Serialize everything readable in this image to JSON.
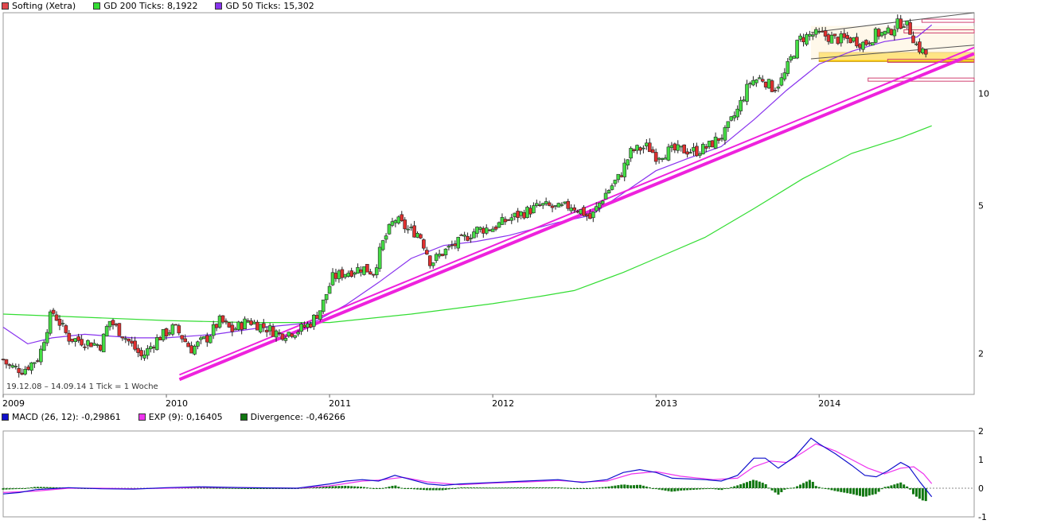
{
  "legend_top": [
    {
      "label": "Softing (Xetra)",
      "color": "#e0474c"
    },
    {
      "label": "GD 200 Ticks: 8,1922",
      "color": "#33dd33"
    },
    {
      "label": "GD 50 Ticks: 15,302",
      "color": "#8833ee"
    }
  ],
  "legend_bottom": [
    {
      "label": "MACD (26, 12): -0,29861",
      "color": "#1010cc"
    },
    {
      "label": "EXP (9): 0,16405",
      "color": "#ee33ee"
    },
    {
      "label": "Divergence: -0,46266",
      "color": "#117711"
    }
  ],
  "info_text": "19.12.08 – 14.09.14   1 Tick = 1 Woche",
  "colors": {
    "up": "#44dd44",
    "down": "#e03030",
    "gd200": "#33dd33",
    "gd50": "#8833ee",
    "trend": "#ee22dd",
    "macd": "#1010cc",
    "exp": "#ee33ee",
    "divergence": "#117711",
    "resistance": "#d04070",
    "zone": "#ffd000"
  },
  "chart_data": [
    {
      "type": "candlestick",
      "name": "price",
      "scale": "log",
      "ylim": [
        1.55,
        16.5
      ],
      "y_ticks": [
        {
          "value": 2,
          "label": "2"
        },
        {
          "value": 5,
          "label": "5"
        },
        {
          "value": 10,
          "label": "10"
        }
      ],
      "x_range": [
        2009.0,
        2014.95
      ],
      "x_ticks": [
        {
          "value": 2009.0,
          "label": "2009"
        },
        {
          "value": 2010.0,
          "label": "2010"
        },
        {
          "value": 2011.0,
          "label": "2011"
        },
        {
          "value": 2012.0,
          "label": "2012"
        },
        {
          "value": 2013.0,
          "label": "2013"
        },
        {
          "value": 2014.0,
          "label": "2014"
        }
      ],
      "price_path": [
        [
          2008.97,
          2.0
        ],
        [
          2009.03,
          1.85
        ],
        [
          2009.12,
          1.8
        ],
        [
          2009.22,
          1.95
        ],
        [
          2009.3,
          2.6
        ],
        [
          2009.4,
          2.2
        ],
        [
          2009.5,
          2.15
        ],
        [
          2009.6,
          2.1
        ],
        [
          2009.65,
          2.45
        ],
        [
          2009.75,
          2.2
        ],
        [
          2009.85,
          1.95
        ],
        [
          2009.95,
          2.2
        ],
        [
          2010.05,
          2.35
        ],
        [
          2010.15,
          2.05
        ],
        [
          2010.25,
          2.2
        ],
        [
          2010.33,
          2.45
        ],
        [
          2010.4,
          2.3
        ],
        [
          2010.5,
          2.45
        ],
        [
          2010.6,
          2.35
        ],
        [
          2010.7,
          2.25
        ],
        [
          2010.8,
          2.3
        ],
        [
          2010.88,
          2.4
        ],
        [
          2010.95,
          2.65
        ],
        [
          2011.02,
          3.2
        ],
        [
          2011.1,
          3.3
        ],
        [
          2011.2,
          3.4
        ],
        [
          2011.27,
          3.3
        ],
        [
          2011.33,
          4.0
        ],
        [
          2011.4,
          4.6
        ],
        [
          2011.48,
          4.3
        ],
        [
          2011.55,
          4.2
        ],
        [
          2011.62,
          3.5
        ],
        [
          2011.7,
          3.75
        ],
        [
          2011.8,
          4.0
        ],
        [
          2011.9,
          4.3
        ],
        [
          2012.0,
          4.35
        ],
        [
          2012.1,
          4.6
        ],
        [
          2012.2,
          4.8
        ],
        [
          2012.3,
          5.0
        ],
        [
          2012.4,
          4.9
        ],
        [
          2012.48,
          5.0
        ],
        [
          2012.55,
          4.8
        ],
        [
          2012.6,
          4.6
        ],
        [
          2012.68,
          5.3
        ],
        [
          2012.78,
          6.0
        ],
        [
          2012.85,
          7.0
        ],
        [
          2012.95,
          7.2
        ],
        [
          2013.0,
          6.8
        ],
        [
          2013.08,
          7.0
        ],
        [
          2013.15,
          7.05
        ],
        [
          2013.25,
          7.0
        ],
        [
          2013.32,
          7.2
        ],
        [
          2013.42,
          7.8
        ],
        [
          2013.5,
          9.0
        ],
        [
          2013.58,
          10.8
        ],
        [
          2013.65,
          11.0
        ],
        [
          2013.72,
          10.3
        ],
        [
          2013.78,
          11.0
        ],
        [
          2013.83,
          12.5
        ],
        [
          2013.88,
          14.0
        ],
        [
          2013.95,
          14.4
        ],
        [
          2014.02,
          14.4
        ],
        [
          2014.1,
          14.0
        ],
        [
          2014.2,
          14.0
        ],
        [
          2014.28,
          13.6
        ],
        [
          2014.35,
          14.5
        ],
        [
          2014.42,
          14.5
        ],
        [
          2014.47,
          15.3
        ],
        [
          2014.52,
          15.6
        ],
        [
          2014.56,
          14.7
        ],
        [
          2014.6,
          13.4
        ],
        [
          2014.66,
          12.7
        ]
      ],
      "gd200": [
        [
          2009.0,
          2.55
        ],
        [
          2009.5,
          2.5
        ],
        [
          2010.0,
          2.45
        ],
        [
          2010.5,
          2.42
        ],
        [
          2011.0,
          2.42
        ],
        [
          2011.5,
          2.55
        ],
        [
          2012.0,
          2.72
        ],
        [
          2012.3,
          2.85
        ],
        [
          2012.5,
          2.95
        ],
        [
          2012.8,
          3.3
        ],
        [
          2013.0,
          3.6
        ],
        [
          2013.3,
          4.1
        ],
        [
          2013.6,
          4.9
        ],
        [
          2013.9,
          5.9
        ],
        [
          2014.2,
          6.9
        ],
        [
          2014.5,
          7.6
        ],
        [
          2014.69,
          8.19
        ]
      ],
      "gd50": [
        [
          2009.0,
          2.35
        ],
        [
          2009.15,
          2.12
        ],
        [
          2009.3,
          2.2
        ],
        [
          2009.5,
          2.25
        ],
        [
          2009.8,
          2.2
        ],
        [
          2010.0,
          2.2
        ],
        [
          2010.3,
          2.25
        ],
        [
          2010.6,
          2.35
        ],
        [
          2010.9,
          2.42
        ],
        [
          2011.1,
          2.7
        ],
        [
          2011.3,
          3.1
        ],
        [
          2011.5,
          3.6
        ],
        [
          2011.7,
          3.9
        ],
        [
          2011.9,
          4.0
        ],
        [
          2012.1,
          4.15
        ],
        [
          2012.4,
          4.5
        ],
        [
          2012.6,
          4.7
        ],
        [
          2012.8,
          5.4
        ],
        [
          2013.0,
          6.2
        ],
        [
          2013.2,
          6.7
        ],
        [
          2013.4,
          7.2
        ],
        [
          2013.6,
          8.5
        ],
        [
          2013.8,
          10.2
        ],
        [
          2014.0,
          12.0
        ],
        [
          2014.2,
          13.0
        ],
        [
          2014.4,
          13.8
        ],
        [
          2014.6,
          14.2
        ],
        [
          2014.69,
          15.3
        ]
      ],
      "trendlines": [
        {
          "from": [
            2010.08,
            1.7
          ],
          "to": [
            2014.95,
            12.8
          ],
          "width": 4,
          "color": "#ee22dd"
        },
        {
          "from": [
            2010.08,
            1.75
          ],
          "to": [
            2014.95,
            13.3
          ],
          "width": 2,
          "color": "#ee22dd"
        },
        {
          "from": [
            2013.95,
            12.4
          ],
          "to": [
            2014.95,
            13.5
          ],
          "width": 1,
          "color": "#555555"
        },
        {
          "from": [
            2013.95,
            14.6
          ],
          "to": [
            2014.95,
            16.5
          ],
          "width": 1,
          "color": "#555555"
        }
      ],
      "resistance_lines": [
        {
          "x1": 2014.63,
          "x2": 2014.95,
          "y": 15.7
        },
        {
          "x1": 2014.52,
          "x2": 2014.95,
          "y": 14.7
        },
        {
          "x1": 2014.42,
          "x2": 2014.95,
          "y": 12.25
        },
        {
          "x1": 2014.3,
          "x2": 2014.95,
          "y": 10.9
        }
      ],
      "zone": {
        "x1": 2014.0,
        "x2": 2014.95,
        "y1": 12.2,
        "y2": 12.9
      }
    },
    {
      "type": "bar_line",
      "name": "macd",
      "ylim": [
        -1,
        2
      ],
      "y_ticks": [
        {
          "value": -1,
          "label": "-1"
        },
        {
          "value": 0,
          "label": "0"
        },
        {
          "value": 1,
          "label": "1"
        },
        {
          "value": 2,
          "label": "2"
        }
      ],
      "macd": [
        [
          2009.0,
          -0.2
        ],
        [
          2009.1,
          -0.15
        ],
        [
          2009.2,
          -0.05
        ],
        [
          2009.4,
          0.02
        ],
        [
          2009.6,
          -0.02
        ],
        [
          2009.8,
          -0.03
        ],
        [
          2010.0,
          0.02
        ],
        [
          2010.2,
          0.05
        ],
        [
          2010.5,
          0.02
        ],
        [
          2010.8,
          0.0
        ],
        [
          2011.0,
          0.15
        ],
        [
          2011.1,
          0.25
        ],
        [
          2011.2,
          0.3
        ],
        [
          2011.3,
          0.25
        ],
        [
          2011.4,
          0.45
        ],
        [
          2011.5,
          0.3
        ],
        [
          2011.6,
          0.15
        ],
        [
          2011.7,
          0.1
        ],
        [
          2011.8,
          0.15
        ],
        [
          2012.0,
          0.2
        ],
        [
          2012.2,
          0.25
        ],
        [
          2012.4,
          0.3
        ],
        [
          2012.55,
          0.2
        ],
        [
          2012.7,
          0.3
        ],
        [
          2012.8,
          0.55
        ],
        [
          2012.9,
          0.65
        ],
        [
          2013.0,
          0.55
        ],
        [
          2013.1,
          0.35
        ],
        [
          2013.3,
          0.3
        ],
        [
          2013.4,
          0.25
        ],
        [
          2013.5,
          0.45
        ],
        [
          2013.6,
          1.05
        ],
        [
          2013.67,
          1.05
        ],
        [
          2013.75,
          0.7
        ],
        [
          2013.85,
          1.1
        ],
        [
          2013.92,
          1.55
        ],
        [
          2013.95,
          1.75
        ],
        [
          2014.0,
          1.55
        ],
        [
          2014.1,
          1.2
        ],
        [
          2014.2,
          0.8
        ],
        [
          2014.28,
          0.45
        ],
        [
          2014.35,
          0.4
        ],
        [
          2014.42,
          0.6
        ],
        [
          2014.5,
          0.9
        ],
        [
          2014.55,
          0.75
        ],
        [
          2014.62,
          0.2
        ],
        [
          2014.69,
          -0.3
        ]
      ],
      "exp": [
        [
          2009.0,
          -0.15
        ],
        [
          2009.2,
          -0.1
        ],
        [
          2009.4,
          0.0
        ],
        [
          2009.6,
          0.0
        ],
        [
          2009.8,
          -0.02
        ],
        [
          2010.0,
          0.0
        ],
        [
          2010.2,
          0.03
        ],
        [
          2010.5,
          0.02
        ],
        [
          2010.8,
          0.0
        ],
        [
          2011.0,
          0.08
        ],
        [
          2011.2,
          0.25
        ],
        [
          2011.3,
          0.28
        ],
        [
          2011.45,
          0.38
        ],
        [
          2011.6,
          0.22
        ],
        [
          2011.8,
          0.12
        ],
        [
          2012.0,
          0.18
        ],
        [
          2012.2,
          0.22
        ],
        [
          2012.4,
          0.27
        ],
        [
          2012.55,
          0.22
        ],
        [
          2012.7,
          0.25
        ],
        [
          2012.85,
          0.5
        ],
        [
          2013.0,
          0.58
        ],
        [
          2013.15,
          0.42
        ],
        [
          2013.35,
          0.3
        ],
        [
          2013.5,
          0.35
        ],
        [
          2013.6,
          0.75
        ],
        [
          2013.7,
          0.95
        ],
        [
          2013.8,
          0.9
        ],
        [
          2013.9,
          1.25
        ],
        [
          2013.98,
          1.55
        ],
        [
          2014.1,
          1.3
        ],
        [
          2014.2,
          1.0
        ],
        [
          2014.3,
          0.7
        ],
        [
          2014.4,
          0.5
        ],
        [
          2014.5,
          0.7
        ],
        [
          2014.58,
          0.75
        ],
        [
          2014.64,
          0.5
        ],
        [
          2014.69,
          0.16
        ]
      ]
    }
  ]
}
